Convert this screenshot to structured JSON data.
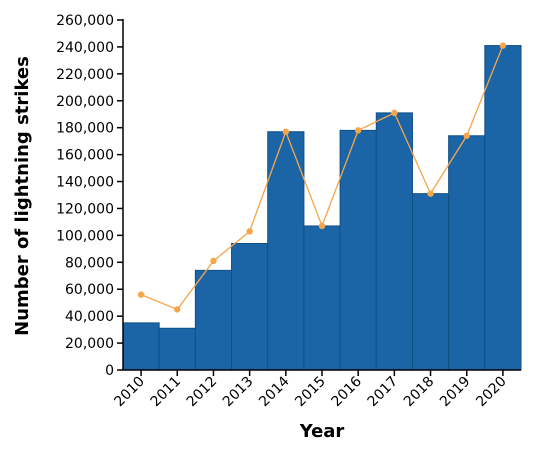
{
  "chart_data": {
    "type": "bar",
    "title": "",
    "xlabel": "Year",
    "ylabel": "Number of lightning strikes",
    "categories": [
      "2010",
      "2011",
      "2012",
      "2013",
      "2014",
      "2015",
      "2016",
      "2017",
      "2018",
      "2019",
      "2020"
    ],
    "series": [
      {
        "type": "bar",
        "values": [
          35000,
          31000,
          74000,
          94000,
          177000,
          107000,
          178000,
          191000,
          131000,
          174000,
          241000
        ],
        "color": "#1b65a6"
      },
      {
        "type": "line",
        "values": [
          56000,
          45000,
          81000,
          103000,
          177000,
          107000,
          178000,
          191000,
          131000,
          174000,
          241000
        ],
        "color": "#f5a54a"
      }
    ],
    "ylim": [
      0,
      260000
    ],
    "yticks": [
      0,
      20000,
      40000,
      60000,
      80000,
      100000,
      120000,
      140000,
      160000,
      180000,
      200000,
      220000,
      240000,
      260000
    ],
    "ytick_labels": [
      "0",
      "20,000",
      "40,000",
      "60,000",
      "80,000",
      "100,000",
      "120,000",
      "140,000",
      "160,000",
      "180,000",
      "200,000",
      "220,000",
      "240,000",
      "260,000"
    ],
    "grid": false,
    "legend": "none"
  }
}
